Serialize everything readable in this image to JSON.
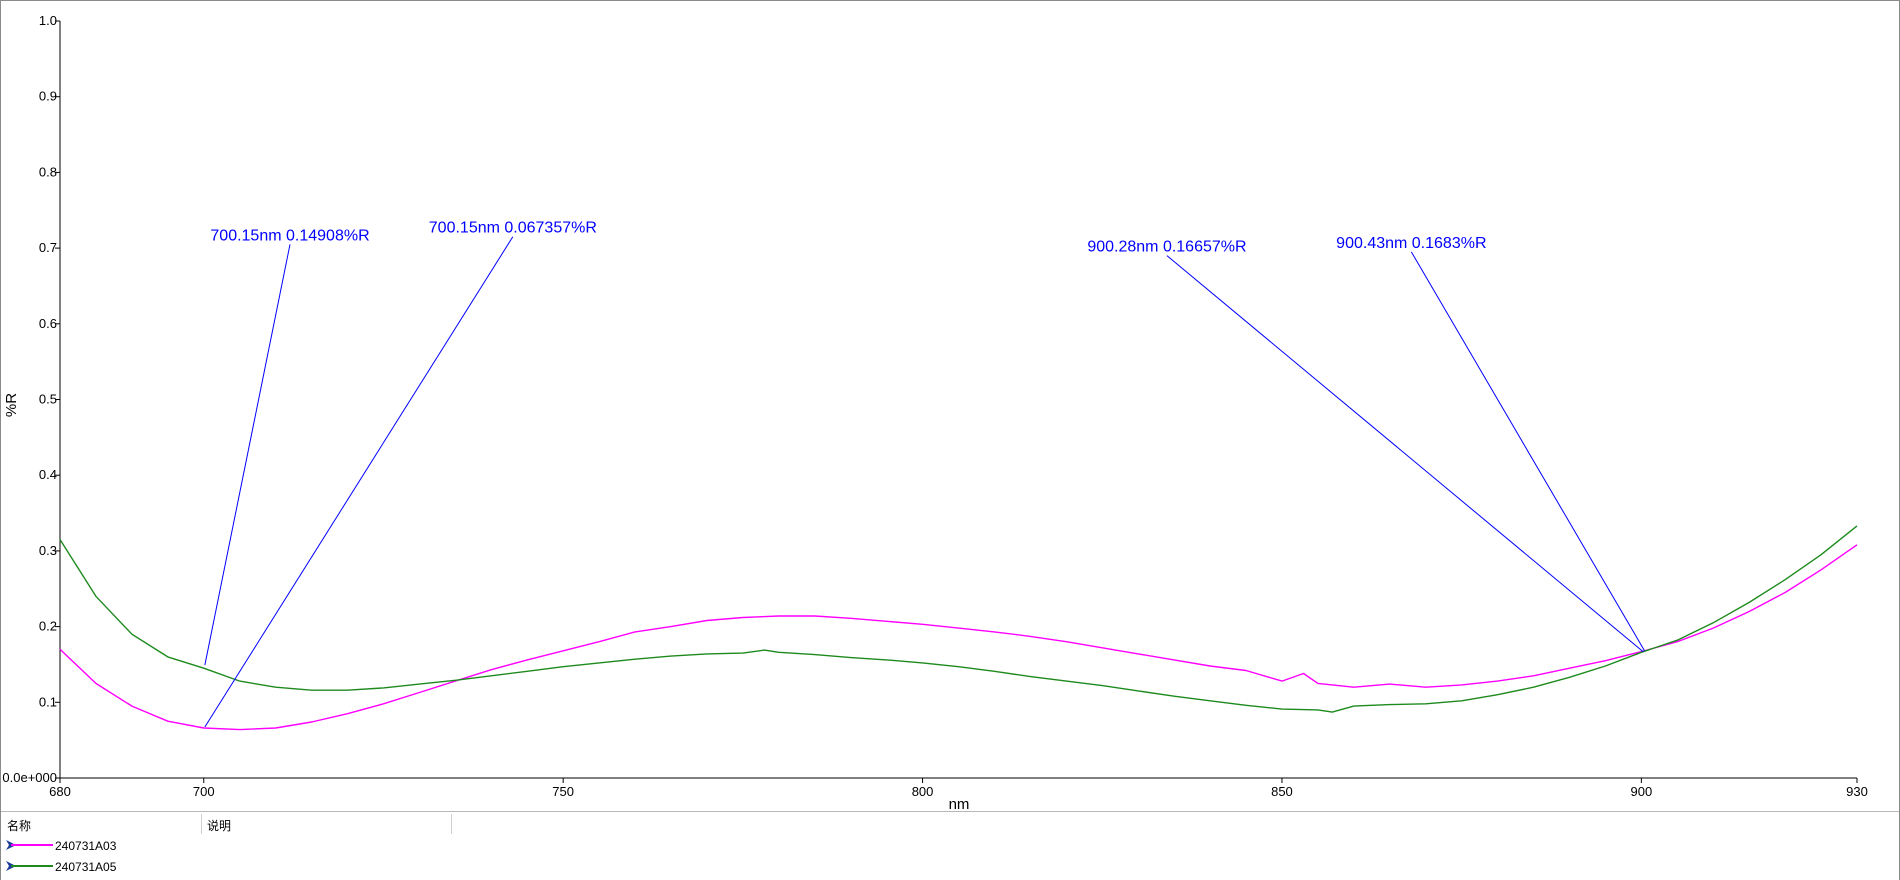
{
  "chart_data": {
    "type": "line",
    "xlabel": "nm",
    "ylabel": "%R",
    "xlim": [
      680,
      930
    ],
    "ylim": [
      0,
      1.0
    ],
    "x_ticks": [
      680,
      700,
      750,
      800,
      850,
      900,
      930
    ],
    "x_tick_labels": [
      "680",
      "700",
      "750",
      "800",
      "850",
      "900",
      "930"
    ],
    "y_ticks": [
      0,
      0.1,
      0.2,
      0.3,
      0.4,
      0.5,
      0.6,
      0.7,
      0.8,
      0.9,
      1.0
    ],
    "y_tick_labels": [
      "0.0e+000",
      "0.1",
      "0.2",
      "0.3",
      "0.4",
      "0.5",
      "0.6",
      "0.7",
      "0.8",
      "0.9",
      "1.0"
    ],
    "grid": false,
    "legend_position": "bottom",
    "series": [
      {
        "name": "240731A03",
        "color": "#ff00ff",
        "x": [
          680,
          685,
          690,
          695,
          700,
          705,
          710,
          715,
          720,
          725,
          730,
          735,
          740,
          745,
          750,
          755,
          760,
          765,
          770,
          775,
          780,
          785,
          790,
          795,
          800,
          805,
          810,
          815,
          820,
          825,
          830,
          835,
          840,
          845,
          850,
          853,
          855,
          860,
          865,
          870,
          875,
          880,
          885,
          890,
          895,
          900,
          905,
          910,
          915,
          920,
          925,
          930
        ],
        "y": [
          0.17,
          0.125,
          0.095,
          0.075,
          0.066,
          0.064,
          0.066,
          0.074,
          0.085,
          0.098,
          0.113,
          0.128,
          0.143,
          0.156,
          0.168,
          0.18,
          0.193,
          0.2,
          0.208,
          0.212,
          0.214,
          0.214,
          0.211,
          0.207,
          0.203,
          0.198,
          0.193,
          0.187,
          0.18,
          0.172,
          0.164,
          0.156,
          0.148,
          0.142,
          0.128,
          0.138,
          0.125,
          0.12,
          0.124,
          0.12,
          0.123,
          0.128,
          0.135,
          0.145,
          0.155,
          0.167,
          0.18,
          0.198,
          0.22,
          0.245,
          0.275,
          0.308
        ]
      },
      {
        "name": "240731A05",
        "color": "#1e8a1e",
        "x": [
          680,
          685,
          690,
          695,
          700,
          705,
          710,
          715,
          720,
          725,
          730,
          735,
          740,
          745,
          750,
          755,
          760,
          765,
          770,
          775,
          778,
          780,
          785,
          790,
          795,
          800,
          805,
          810,
          815,
          820,
          825,
          830,
          835,
          840,
          845,
          850,
          855,
          857,
          860,
          865,
          870,
          875,
          880,
          885,
          890,
          895,
          900,
          905,
          910,
          915,
          920,
          925,
          930
        ],
        "y": [
          0.315,
          0.24,
          0.19,
          0.16,
          0.145,
          0.128,
          0.12,
          0.116,
          0.116,
          0.119,
          0.124,
          0.129,
          0.135,
          0.141,
          0.147,
          0.152,
          0.157,
          0.161,
          0.164,
          0.165,
          0.169,
          0.166,
          0.163,
          0.159,
          0.156,
          0.152,
          0.147,
          0.141,
          0.134,
          0.128,
          0.122,
          0.115,
          0.108,
          0.102,
          0.096,
          0.091,
          0.09,
          0.087,
          0.095,
          0.097,
          0.098,
          0.102,
          0.11,
          0.12,
          0.133,
          0.148,
          0.166,
          0.182,
          0.205,
          0.232,
          0.262,
          0.295,
          0.333
        ]
      }
    ],
    "annotations": [
      {
        "text": "700.15nm 0.14908%R",
        "x": 700.15,
        "y": 0.14908,
        "label_x": 712,
        "label_y": 0.705
      },
      {
        "text": "700.15nm 0.067357%R",
        "x": 700.15,
        "y": 0.067357,
        "label_x": 743,
        "label_y": 0.715
      },
      {
        "text": "900.28nm 0.16657%R",
        "x": 900.28,
        "y": 0.16657,
        "label_x": 834,
        "label_y": 0.69
      },
      {
        "text": "900.43nm 0.1683%R",
        "x": 900.43,
        "y": 0.1683,
        "label_x": 868,
        "label_y": 0.695
      }
    ],
    "annotation_color": "#0000ff"
  },
  "legend_panel": {
    "header_name": "名称",
    "header_desc": "说明",
    "entries": [
      {
        "name": "240731A03",
        "color": "#ff00ff"
      },
      {
        "name": "240731A05",
        "color": "#1e8a1e"
      }
    ],
    "marker_color": "#1a3a9a"
  }
}
